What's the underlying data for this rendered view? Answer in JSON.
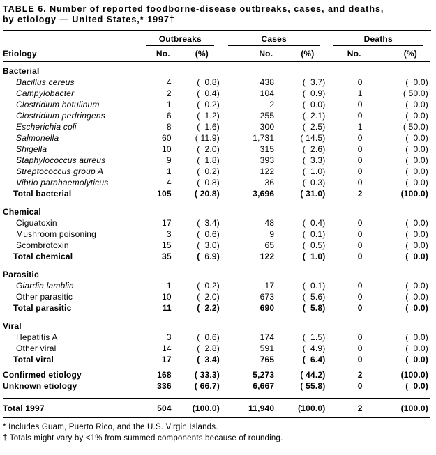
{
  "title": {
    "line1": "TABLE 6. Number of reported foodborne-disease outbreaks, cases, and deaths,",
    "line2": "by etiology — United States,* 1997†"
  },
  "header": {
    "etiology": "Etiology",
    "outbreaks": "Outbreaks",
    "cases": "Cases",
    "deaths": "Deaths",
    "no": "No.",
    "pct": "(%)"
  },
  "rows": [
    {
      "label": "Bacterial"
    },
    {
      "label": "Bacillus cereus",
      "o_no": "4",
      "o_pct": "(  0.8)",
      "c_no": "438",
      "c_pct": "(  3.7)",
      "d_no": "0",
      "d_pct": "(  0.0)"
    },
    {
      "label": "Campylobacter",
      "o_no": "2",
      "o_pct": "(  0.4)",
      "c_no": "104",
      "c_pct": "(  0.9)",
      "d_no": "1",
      "d_pct": "( 50.0)"
    },
    {
      "label": "Clostridium botulinum",
      "o_no": "1",
      "o_pct": "(  0.2)",
      "c_no": "2",
      "c_pct": "(  0.0)",
      "d_no": "0",
      "d_pct": "(  0.0)"
    },
    {
      "label": "Clostridium perfringens",
      "o_no": "6",
      "o_pct": "(  1.2)",
      "c_no": "255",
      "c_pct": "(  2.1)",
      "d_no": "0",
      "d_pct": "(  0.0)"
    },
    {
      "label": "Escherichia coli",
      "o_no": "8",
      "o_pct": "(  1.6)",
      "c_no": "300",
      "c_pct": "(  2.5)",
      "d_no": "1",
      "d_pct": "( 50.0)"
    },
    {
      "label": "Salmonella",
      "o_no": "60",
      "o_pct": "( 11.9)",
      "c_no": "1,731",
      "c_pct": "( 14.5)",
      "d_no": "0",
      "d_pct": "(  0.0)"
    },
    {
      "label": "Shigella",
      "o_no": "10",
      "o_pct": "(  2.0)",
      "c_no": "315",
      "c_pct": "(  2.6)",
      "d_no": "0",
      "d_pct": "(  0.0)"
    },
    {
      "label": "Staphylococcus aureus",
      "o_no": "9",
      "o_pct": "(  1.8)",
      "c_no": "393",
      "c_pct": "(  3.3)",
      "d_no": "0",
      "d_pct": "(  0.0)"
    },
    {
      "label": "Streptococcus group A",
      "o_no": "1",
      "o_pct": "(  0.2)",
      "c_no": "122",
      "c_pct": "(  1.0)",
      "d_no": "0",
      "d_pct": "(  0.0)"
    },
    {
      "label": "Vibrio parahaemolyticus",
      "o_no": "4",
      "o_pct": "(  0.8)",
      "c_no": "36",
      "c_pct": "(  0.3)",
      "d_no": "0",
      "d_pct": "(  0.0)"
    },
    {
      "label": "Total bacterial",
      "o_no": "105",
      "o_pct": "( 20.8)",
      "c_no": "3,696",
      "c_pct": "( 31.0)",
      "d_no": "2",
      "d_pct": "(100.0)"
    },
    {
      "label": "Chemical"
    },
    {
      "label": "Ciguatoxin",
      "o_no": "17",
      "o_pct": "(  3.4)",
      "c_no": "48",
      "c_pct": "(  0.4)",
      "d_no": "0",
      "d_pct": "(  0.0)"
    },
    {
      "label": "Mushroom poisoning",
      "o_no": "3",
      "o_pct": "(  0.6)",
      "c_no": "9",
      "c_pct": "(  0.1)",
      "d_no": "0",
      "d_pct": "(  0.0)"
    },
    {
      "label": "Scombrotoxin",
      "o_no": "15",
      "o_pct": "(  3.0)",
      "c_no": "65",
      "c_pct": "(  0.5)",
      "d_no": "0",
      "d_pct": "(  0.0)"
    },
    {
      "label": "Total chemical",
      "o_no": "35",
      "o_pct": "(  6.9)",
      "c_no": "122",
      "c_pct": "(  1.0)",
      "d_no": "0",
      "d_pct": "(  0.0)"
    },
    {
      "label": "Parasitic"
    },
    {
      "label": "Giardia lamblia",
      "o_no": "1",
      "o_pct": "(  0.2)",
      "c_no": "17",
      "c_pct": "(  0.1)",
      "d_no": "0",
      "d_pct": "(  0.0)"
    },
    {
      "label": "Other parasitic",
      "o_no": "10",
      "o_pct": "(  2.0)",
      "c_no": "673",
      "c_pct": "(  5.6)",
      "d_no": "0",
      "d_pct": "(  0.0)"
    },
    {
      "label": "Total parasitic",
      "o_no": "11",
      "o_pct": "(  2.2)",
      "c_no": "690",
      "c_pct": "(  5.8)",
      "d_no": "0",
      "d_pct": "(  0.0)"
    },
    {
      "label": "Viral"
    },
    {
      "label": "Hepatitis A",
      "o_no": "3",
      "o_pct": "(  0.6)",
      "c_no": "174",
      "c_pct": "(  1.5)",
      "d_no": "0",
      "d_pct": "(  0.0)"
    },
    {
      "label": "Other viral",
      "o_no": "14",
      "o_pct": "(  2.8)",
      "c_no": "591",
      "c_pct": "(  4.9)",
      "d_no": "0",
      "d_pct": "(  0.0)"
    },
    {
      "label": "Total viral",
      "o_no": "17",
      "o_pct": "(  3.4)",
      "c_no": "765",
      "c_pct": "(  6.4)",
      "d_no": "0",
      "d_pct": "(  0.0)"
    },
    {
      "label": "Confirmed etiology",
      "o_no": "168",
      "o_pct": "( 33.3)",
      "c_no": "5,273",
      "c_pct": "( 44.2)",
      "d_no": "2",
      "d_pct": "(100.0)"
    },
    {
      "label": "Unknown etiology",
      "o_no": "336",
      "o_pct": "( 66.7)",
      "c_no": "6,667",
      "c_pct": "( 55.8)",
      "d_no": "0",
      "d_pct": "(  0.0)"
    },
    {
      "label": "Total 1997",
      "o_no": "504",
      "o_pct": "(100.0)",
      "c_no": "11,940",
      "c_pct": "(100.0)",
      "d_no": "2",
      "d_pct": "(100.0)"
    }
  ],
  "footnotes": {
    "f1": "* Includes Guam, Puerto Rico, and the U.S. Virgin Islands.",
    "f2": "† Totals might vary by <1% from summed components because of rounding."
  }
}
